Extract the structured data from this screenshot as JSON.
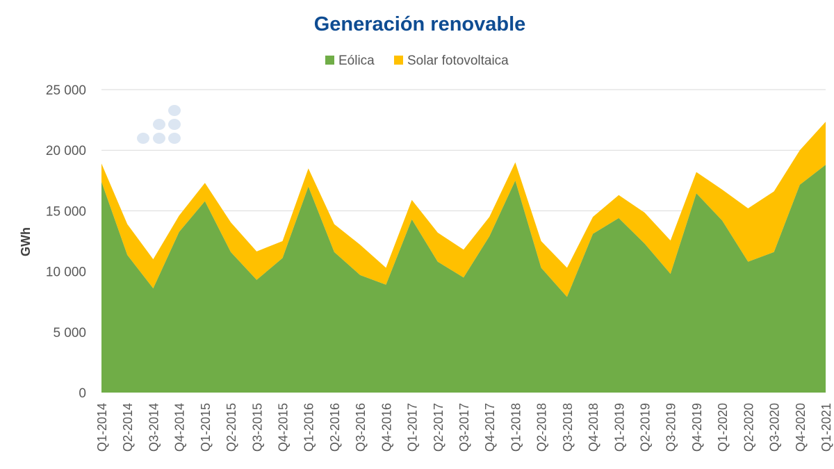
{
  "chart_data": {
    "type": "area",
    "stacked": true,
    "title": "Generación renovable",
    "xlabel": "",
    "ylabel": "GWh",
    "ylim": [
      0,
      25000
    ],
    "yticks": [
      0,
      5000,
      10000,
      15000,
      20000,
      25000
    ],
    "ytick_labels": [
      "0",
      "5 000",
      "10 000",
      "15 000",
      "20 000",
      "25 000"
    ],
    "grid": true,
    "legend_position": "top-center",
    "categories": [
      "Q1-2014",
      "Q2-2014",
      "Q3-2014",
      "Q4-2014",
      "Q1-2015",
      "Q2-2015",
      "Q3-2015",
      "Q4-2015",
      "Q1-2016",
      "Q2-2016",
      "Q3-2016",
      "Q4-2016",
      "Q1-2017",
      "Q2-2017",
      "Q3-2017",
      "Q4-2017",
      "Q1-2018",
      "Q2-2018",
      "Q3-2018",
      "Q4-2018",
      "Q1-2019",
      "Q2-2019",
      "Q3-2019",
      "Q4-2019",
      "Q1-2020",
      "Q2-2020",
      "Q3-2020",
      "Q4-2020",
      "Q1-2021"
    ],
    "series": [
      {
        "name": "Eólica",
        "color": "#70AD47",
        "values": [
          17400,
          11350,
          8600,
          13250,
          15800,
          11600,
          9300,
          11100,
          17000,
          11600,
          9700,
          8900,
          14300,
          10800,
          9500,
          12900,
          17500,
          10300,
          7900,
          13100,
          14400,
          12300,
          9800,
          16450,
          14200,
          10800,
          11600,
          17150,
          18800
        ]
      },
      {
        "name": "Solar fotovoltaica",
        "color": "#FFC000",
        "values": [
          1500,
          2550,
          2400,
          1350,
          1500,
          2450,
          2350,
          1400,
          1500,
          2300,
          2500,
          1400,
          1600,
          2400,
          2300,
          1600,
          1500,
          2200,
          2400,
          1400,
          1900,
          2550,
          2750,
          1750,
          2550,
          4400,
          5000,
          2850,
          3550
        ]
      }
    ]
  },
  "colors": {
    "title": "#0E4C92",
    "grid": "#D9D9D9",
    "axis_text": "#595959",
    "logo": "#DCE6F2"
  }
}
